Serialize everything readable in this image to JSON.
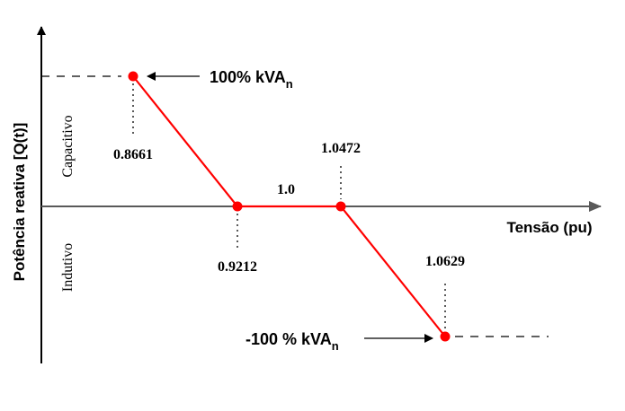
{
  "chart_data": {
    "type": "line",
    "title": "",
    "xlabel": "Tensão (pu)",
    "ylabel": "Potência reativa [Q(t)]",
    "region_labels": {
      "upper": "Capacitivo",
      "lower": "Indutivo"
    },
    "series": [
      {
        "points": [
          {
            "x": 0.8661,
            "y": 100
          },
          {
            "x": 0.9212,
            "y": 0
          },
          {
            "x": 1.0472,
            "y": 0
          },
          {
            "x": 1.0629,
            "y": -100
          }
        ]
      }
    ],
    "point_labels": [
      "0.8661",
      "0.9212",
      "1.0472",
      "1.0629"
    ],
    "segment_label": "1.0",
    "annotations": {
      "top": {
        "main": "100% kVA",
        "sub": "n"
      },
      "bottom": {
        "main": "-100 % kVA",
        "sub": "n"
      }
    },
    "colors": {
      "line": "#ff0000",
      "marker": "#ff0000",
      "axis": "#000000",
      "x_axis": "#595959"
    }
  }
}
